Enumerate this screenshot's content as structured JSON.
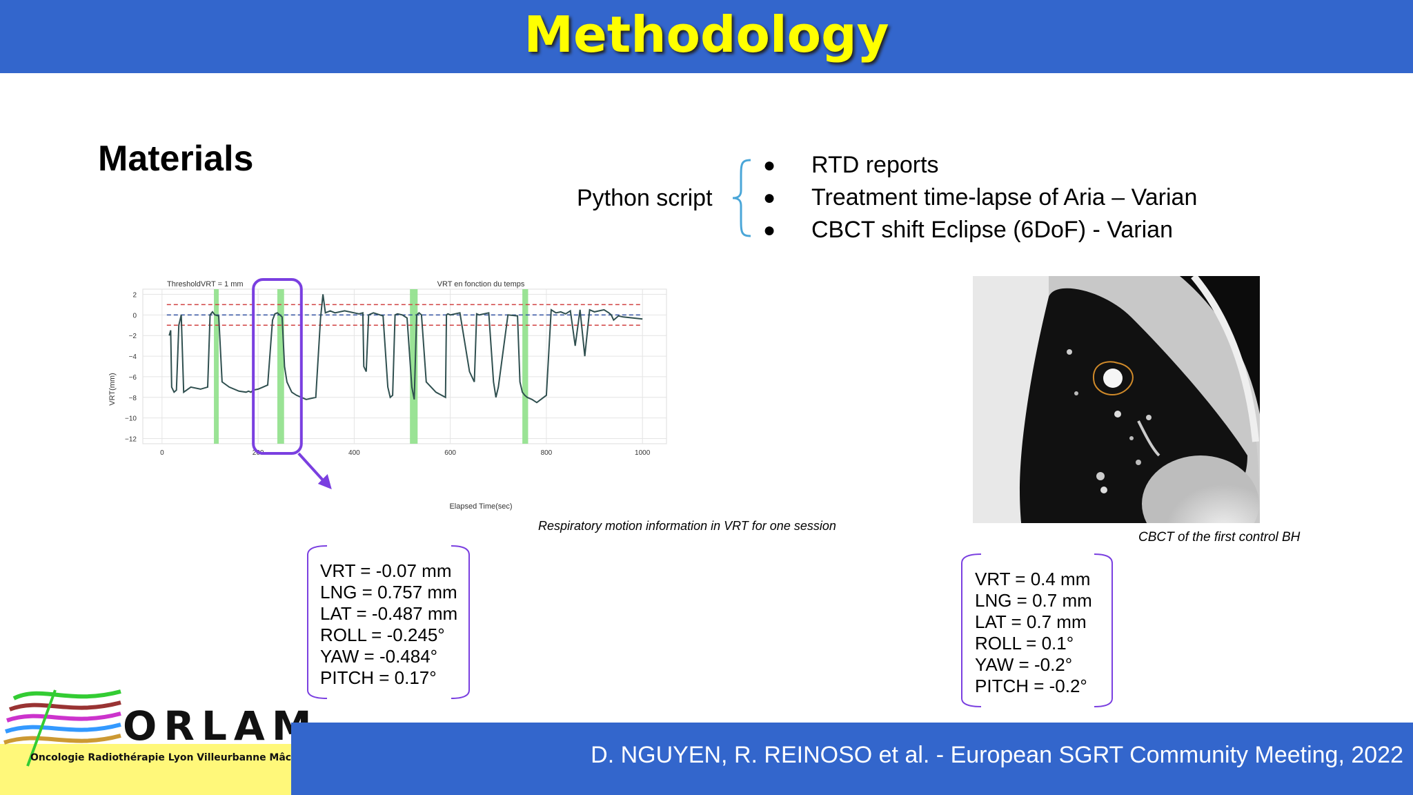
{
  "slide": {
    "title": "Methodology",
    "heading": "Materials",
    "python_label": "Python script",
    "bullets": [
      "RTD reports",
      "Treatment time-lapse of Aria – Varian",
      "CBCT shift Eclipse (6DoF) - Varian"
    ],
    "caption_chart": "Respiratory motion information in VRT for one session",
    "caption_ct": "CBCT of the first control BH",
    "shift_box_1": [
      "VRT = -0.07 mm",
      "LNG = 0.757 mm",
      "LAT = -0.487 mm",
      "ROLL = -0.245°",
      "YAW = -0.484°",
      "PITCH = 0.17°"
    ],
    "shift_box_2": [
      "VRT = 0.4 mm",
      "LNG = 0.7 mm",
      "LAT = 0.7 mm",
      "ROLL = 0.1°",
      "YAW = -0.2°",
      "PITCH = -0.2°"
    ],
    "footer": "D. NGUYEN, R. REINOSO et al. - European SGRT Community Meeting, 2022",
    "logo_name": "ORLAM",
    "logo_sub": "Oncologie Radiothérapie Lyon Villeurbanne Mâcon"
  },
  "colors": {
    "header": "#3366cc",
    "title": "#ffff00",
    "highlight": "#7a3fe0",
    "band": "#8fe08a",
    "trace": "#2f4f4f"
  },
  "chart_data": {
    "type": "line",
    "title": "VRT en fonction du temps",
    "subtitle": "ThresholdVRT = 1 mm",
    "xlabel": "Elapsed Time(sec)",
    "ylabel": "VRT(mm)",
    "xlim": [
      -40,
      1050
    ],
    "ylim": [
      -12.5,
      2.5
    ],
    "xticks": [
      0,
      200,
      400,
      600,
      800,
      1000
    ],
    "yticks": [
      2,
      0,
      -2,
      -4,
      -6,
      -8,
      -10,
      -12
    ],
    "threshold_lines": [
      1,
      -1
    ],
    "zero_line": 0,
    "green_bands": [
      [
        108,
        118
      ],
      [
        240,
        254
      ],
      [
        516,
        532
      ],
      [
        750,
        762
      ]
    ],
    "highlight_range": [
      190,
      290
    ],
    "series": [
      {
        "x": [
          15,
          18,
          20,
          25,
          30,
          35,
          40,
          45,
          60,
          80,
          95,
          100,
          105,
          110,
          118,
          125,
          140,
          160,
          175,
          180,
          185,
          190,
          200,
          210,
          220,
          230,
          235,
          240,
          245,
          250,
          255,
          260,
          265,
          270,
          280,
          300,
          320,
          330,
          335,
          340,
          350,
          360,
          380,
          400,
          410,
          418,
          420,
          425,
          430,
          440,
          460,
          470,
          475,
          480,
          485,
          490,
          500,
          510,
          520,
          525,
          530,
          535,
          540,
          550,
          570,
          590,
          592,
          595,
          600,
          620,
          640,
          650,
          655,
          660,
          680,
          690,
          695,
          700,
          720,
          740,
          745,
          750,
          755,
          760,
          770,
          780,
          800,
          810,
          820,
          830,
          840,
          850,
          860,
          870,
          880,
          890,
          900,
          910,
          920,
          930,
          935,
          940,
          950,
          960,
          980,
          1000
        ],
        "y": [
          -2,
          -1.5,
          -7,
          -7.5,
          -7.3,
          -1,
          0,
          -7.5,
          -7,
          -7.2,
          -7,
          0,
          0.3,
          0,
          -0.1,
          -6.5,
          -7,
          -7.4,
          -7.5,
          -7.4,
          -7.5,
          -7.3,
          -7.2,
          -7,
          -6.8,
          -0.5,
          0.1,
          0.2,
          0,
          -0.2,
          -5,
          -6.5,
          -7,
          -7.5,
          -7.8,
          -8.2,
          -8,
          -0.3,
          2,
          0.2,
          0.4,
          0.2,
          0.4,
          0.2,
          0.1,
          0.2,
          -5,
          -5.5,
          0,
          0.2,
          -0.1,
          -7,
          -8,
          -7.8,
          0,
          0.1,
          0,
          -0.3,
          -7,
          -8.2,
          0,
          0.2,
          0,
          -6.5,
          -7.5,
          -8,
          0,
          0.1,
          0,
          0.2,
          -5.5,
          -6.5,
          0.1,
          0,
          0.2,
          -6.5,
          -8,
          -7,
          0,
          -0.1,
          -6.5,
          -7.5,
          -7.8,
          -8,
          -8.2,
          -8.5,
          -7.8,
          0.5,
          0.2,
          0.3,
          0.1,
          0.4,
          -3,
          0.5,
          -4,
          0.5,
          0.3,
          0.4,
          0.5,
          0.2,
          0,
          -0.5,
          -0.1,
          -0.2,
          -0.3,
          -0.4
        ]
      }
    ]
  }
}
